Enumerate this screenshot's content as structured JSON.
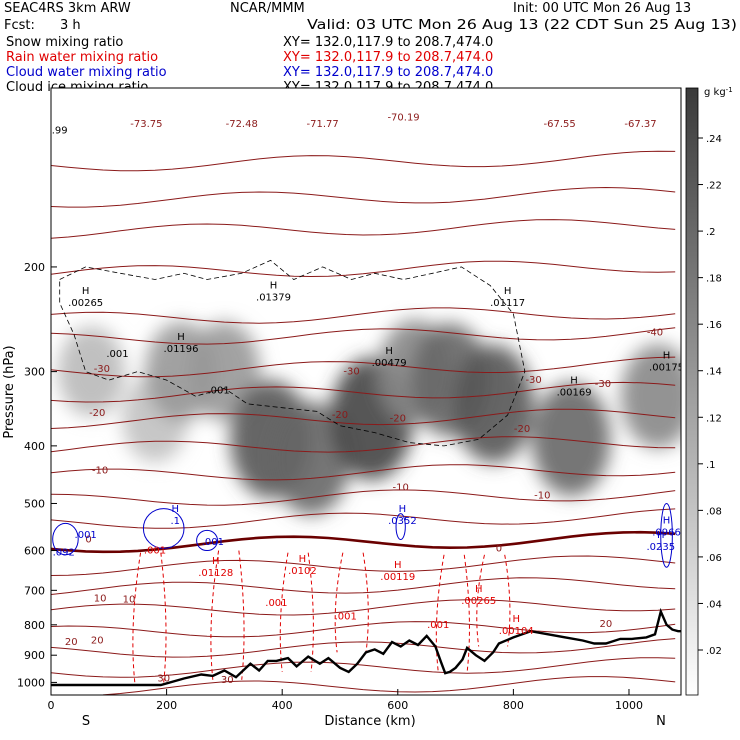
{
  "header": {
    "project": "SEAC4RS  3km ARW",
    "org": "NCAR/MMM",
    "init": "Init: 00 UTC Mon 26 Aug 13",
    "fcst_label": "Fcst:",
    "fcst_value": "3 h",
    "valid": "Valid: 03 UTC Mon 26 Aug 13 (22 CDT Sun 25 Aug 13)"
  },
  "fields": [
    {
      "name": "Snow mixing ratio",
      "xy": "XY=  132.0,117.9 to 208.7,474.0",
      "color": "#000000"
    },
    {
      "name": "Rain water mixing ratio",
      "xy": "XY=  132.0,117.9 to 208.7,474.0",
      "color": "#e00000"
    },
    {
      "name": "Cloud water mixing ratio",
      "xy": "XY=  132.0,117.9 to 208.7,474.0",
      "color": "#0000cc"
    },
    {
      "name": "Cloud ice mixing ratio",
      "xy": "XY=  132.0,117.9 to 208.7,474.0",
      "color": "#000000"
    }
  ],
  "chart_data": {
    "type": "heatmap",
    "xlabel": "Distance (km)",
    "ylabel": "Pressure (hPa)",
    "xlim": [
      0,
      1090
    ],
    "ylim": [
      1050,
      100
    ],
    "y_scale": "log",
    "x_ticks": [
      0,
      200,
      400,
      600,
      800,
      1000
    ],
    "y_ticks": [
      200,
      300,
      400,
      500,
      600,
      700,
      800,
      900,
      1000
    ],
    "x_end_labels": {
      "left": "S",
      "right": "N"
    },
    "colorbar": {
      "unit": "g kg",
      "exponent": "-1",
      "ticks": [
        ".24",
        ".22",
        ".2",
        ".18",
        ".16",
        ".14",
        ".12",
        ".1",
        ".08",
        ".06",
        ".04",
        ".02"
      ]
    },
    "snow_cores": [
      {
        "x": 70,
        "p": 300,
        "value": 0.06
      },
      {
        "x": 180,
        "p": 360,
        "value": 0.05
      },
      {
        "x": 225,
        "p": 300,
        "value": 0.1
      },
      {
        "x": 300,
        "p": 300,
        "value": 0.1
      },
      {
        "x": 380,
        "p": 390,
        "value": 0.18
      },
      {
        "x": 450,
        "p": 420,
        "value": 0.16
      },
      {
        "x": 555,
        "p": 360,
        "value": 0.2
      },
      {
        "x": 630,
        "p": 300,
        "value": 0.12
      },
      {
        "x": 690,
        "p": 310,
        "value": 0.16
      },
      {
        "x": 765,
        "p": 340,
        "value": 0.18
      },
      {
        "x": 900,
        "p": 390,
        "value": 0.16
      },
      {
        "x": 1050,
        "p": 330,
        "value": 0.12
      }
    ],
    "temperature_labels": [
      {
        "x": 165,
        "p": 115,
        "text": "-73.75"
      },
      {
        "x": 330,
        "p": 115,
        "text": "-72.48"
      },
      {
        "x": 470,
        "p": 115,
        "text": "-71.77"
      },
      {
        "x": 610,
        "p": 112,
        "text": "-70.19"
      },
      {
        "x": 880,
        "p": 115,
        "text": "-67.55"
      },
      {
        "x": 1020,
        "p": 115,
        "text": "-67.37"
      },
      {
        "x": 1045,
        "p": 258,
        "text": "-40"
      },
      {
        "x": 88,
        "p": 297,
        "text": "-30"
      },
      {
        "x": 520,
        "p": 300,
        "text": "-30"
      },
      {
        "x": 835,
        "p": 310,
        "text": "-30"
      },
      {
        "x": 955,
        "p": 315,
        "text": "-30"
      },
      {
        "x": 80,
        "p": 352,
        "text": "-20"
      },
      {
        "x": 500,
        "p": 355,
        "text": "-20"
      },
      {
        "x": 600,
        "p": 360,
        "text": "-20"
      },
      {
        "x": 815,
        "p": 375,
        "text": "-20"
      },
      {
        "x": 85,
        "p": 440,
        "text": "-10"
      },
      {
        "x": 605,
        "p": 470,
        "text": "-10"
      },
      {
        "x": 850,
        "p": 485,
        "text": "-10"
      },
      {
        "x": 65,
        "p": 575,
        "text": "0"
      },
      {
        "x": 775,
        "p": 595,
        "text": "0"
      },
      {
        "x": 85,
        "p": 722,
        "text": "10"
      },
      {
        "x": 135,
        "p": 725,
        "text": "10"
      },
      {
        "x": 35,
        "p": 855,
        "text": "20"
      },
      {
        "x": 80,
        "p": 850,
        "text": "20"
      },
      {
        "x": 960,
        "p": 797,
        "text": "20"
      },
      {
        "x": 195,
        "p": 985,
        "text": "30"
      },
      {
        "x": 305,
        "p": 990,
        "text": "30"
      }
    ],
    "snow_maxima": [
      {
        "x": 60,
        "p": 230,
        "text": ".00265"
      },
      {
        "x": 385,
        "p": 225,
        "text": ".01379"
      },
      {
        "x": 225,
        "p": 275,
        "text": ".01196"
      },
      {
        "x": 585,
        "p": 290,
        "text": ".00479"
      },
      {
        "x": 790,
        "p": 230,
        "text": ".01117"
      },
      {
        "x": 905,
        "p": 325,
        "text": ".00169"
      },
      {
        "x": 1065,
        "p": 295,
        "text": ".00175"
      }
    ],
    "snow_minor_labels": [
      {
        "x": 115,
        "p": 280,
        "text": ".001"
      },
      {
        "x": 290,
        "p": 323,
        "text": ".001"
      },
      {
        "x": 15,
        "p": 118,
        "text": ".99"
      }
    ],
    "rain_maxima": [
      {
        "x": 285,
        "p": 655,
        "text": ".01128"
      },
      {
        "x": 435,
        "p": 650,
        "text": ".0102"
      },
      {
        "x": 600,
        "p": 665,
        "text": ".00119"
      },
      {
        "x": 740,
        "p": 730,
        "text": ".00265"
      },
      {
        "x": 805,
        "p": 820,
        "text": ".00104"
      }
    ],
    "rain_minor_labels": [
      {
        "x": 180,
        "p": 600,
        "text": ".001"
      },
      {
        "x": 390,
        "p": 735,
        "text": ".001"
      },
      {
        "x": 510,
        "p": 775,
        "text": ".001"
      },
      {
        "x": 670,
        "p": 800,
        "text": ".001"
      }
    ],
    "cloud_water_maxima": [
      {
        "x": 215,
        "p": 535,
        "text": ".1"
      },
      {
        "x": 608,
        "p": 535,
        "text": ".0352"
      },
      {
        "x": 1065,
        "p": 560,
        "text": ".0966"
      },
      {
        "x": 1055,
        "p": 592,
        "text": ".0235"
      }
    ],
    "cloud_water_minor_labels": [
      {
        "x": 60,
        "p": 565,
        "text": ".001"
      },
      {
        "x": 22,
        "p": 605,
        "text": ".092"
      },
      {
        "x": 280,
        "p": 580,
        "text": ".001"
      }
    ],
    "terrain_profile": [
      [
        0,
        1010
      ],
      [
        80,
        1010
      ],
      [
        190,
        1010
      ],
      [
        230,
        985
      ],
      [
        260,
        970
      ],
      [
        280,
        975
      ],
      [
        300,
        955
      ],
      [
        320,
        980
      ],
      [
        345,
        930
      ],
      [
        360,
        955
      ],
      [
        375,
        920
      ],
      [
        390,
        920
      ],
      [
        410,
        910
      ],
      [
        425,
        940
      ],
      [
        445,
        905
      ],
      [
        465,
        930
      ],
      [
        480,
        910
      ],
      [
        500,
        945
      ],
      [
        515,
        960
      ],
      [
        530,
        930
      ],
      [
        545,
        890
      ],
      [
        560,
        880
      ],
      [
        575,
        895
      ],
      [
        590,
        855
      ],
      [
        605,
        870
      ],
      [
        620,
        850
      ],
      [
        635,
        865
      ],
      [
        650,
        835
      ],
      [
        665,
        870
      ],
      [
        675,
        925
      ],
      [
        682,
        965
      ],
      [
        690,
        960
      ],
      [
        700,
        945
      ],
      [
        712,
        915
      ],
      [
        720,
        875
      ],
      [
        735,
        900
      ],
      [
        750,
        920
      ],
      [
        765,
        890
      ],
      [
        775,
        860
      ],
      [
        800,
        840
      ],
      [
        830,
        820
      ],
      [
        860,
        830
      ],
      [
        890,
        840
      ],
      [
        920,
        850
      ],
      [
        940,
        860
      ],
      [
        960,
        860
      ],
      [
        985,
        845
      ],
      [
        1005,
        845
      ],
      [
        1030,
        840
      ],
      [
        1045,
        830
      ],
      [
        1055,
        760
      ],
      [
        1065,
        800
      ],
      [
        1075,
        815
      ],
      [
        1085,
        820
      ],
      [
        1090,
        820
      ]
    ]
  }
}
